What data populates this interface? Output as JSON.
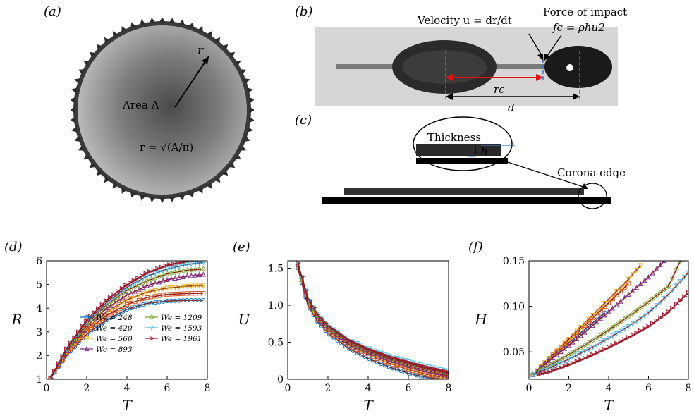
{
  "panels": {
    "a": {
      "label": "(a)",
      "r_label": "r",
      "area_label": "Area A",
      "formula": "r = √(A/π)"
    },
    "b": {
      "label": "(b)",
      "velocity_label": "Velocity u = dr/dt",
      "force_label": "Force of impact",
      "force_formula": "fc = ρhu2",
      "rc_label": "rc",
      "d_label": "d"
    },
    "c": {
      "label": "(c)",
      "thickness_label": "Thickness",
      "h_label": "h",
      "corona_label": "Corona edge"
    },
    "d": {
      "label": "(d)"
    },
    "e": {
      "label": "(e)"
    },
    "f": {
      "label": "(f)"
    }
  },
  "colors": {
    "We248": "#0072bd",
    "We420": "#d95319",
    "We560": "#edb120",
    "We893": "#7e2f8e",
    "We1209": "#77ac30",
    "We1593": "#4dbeee",
    "We1961": "#a2142f",
    "fit_line": "#8b1a1a",
    "arrow_red": "#e5140f",
    "dash_blue": "#3a78c9"
  },
  "chart_data": [
    {
      "type": "line",
      "panel": "d",
      "xlabel": "T",
      "ylabel": "R",
      "xlim": [
        0,
        8
      ],
      "ylim": [
        1,
        6
      ],
      "xticks": [
        "0",
        "2",
        "4",
        "6",
        "8"
      ],
      "yticks": [
        "1",
        "2",
        "3",
        "4",
        "5",
        "6"
      ],
      "legend_placement": "bottom-right",
      "series": [
        {
          "name": "We = 248",
          "marker": "circle",
          "x": [
            0.2,
            1,
            2,
            3,
            4,
            5,
            6,
            7,
            7.8
          ],
          "values": [
            1.05,
            2.0,
            2.9,
            3.5,
            3.95,
            4.2,
            4.3,
            4.33,
            4.33
          ]
        },
        {
          "name": "We = 420",
          "marker": "square",
          "x": [
            0.2,
            1,
            2,
            3,
            4,
            5,
            6,
            7,
            7.8
          ],
          "values": [
            1.05,
            2.1,
            3.05,
            3.7,
            4.15,
            4.45,
            4.58,
            4.62,
            4.63
          ]
        },
        {
          "name": "We = 560",
          "marker": "triangle-down",
          "x": [
            0.2,
            1,
            2,
            3,
            4,
            5,
            6,
            7,
            7.8
          ],
          "values": [
            1.05,
            2.15,
            3.15,
            3.85,
            4.35,
            4.68,
            4.85,
            4.93,
            4.95
          ]
        },
        {
          "name": "We = 893",
          "marker": "triangle-up",
          "x": [
            0.2,
            1,
            2,
            3,
            4,
            5,
            6,
            7,
            7.8
          ],
          "values": [
            1.05,
            2.2,
            3.25,
            4.0,
            4.55,
            4.95,
            5.2,
            5.35,
            5.42
          ]
        },
        {
          "name": "We = 1209",
          "marker": "diamond",
          "x": [
            0.2,
            1,
            2,
            3,
            4,
            5,
            6,
            7,
            7.8
          ],
          "values": [
            1.05,
            2.25,
            3.35,
            4.15,
            4.75,
            5.15,
            5.45,
            5.6,
            5.65
          ]
        },
        {
          "name": "We = 1593",
          "marker": "triangle-down",
          "x": [
            0.2,
            1,
            2,
            3,
            4,
            5,
            6,
            7,
            7.8
          ],
          "values": [
            1.05,
            2.28,
            3.42,
            4.25,
            4.88,
            5.35,
            5.65,
            5.85,
            5.93
          ]
        },
        {
          "name": "We = 1961",
          "marker": "triangle-right",
          "x": [
            0.2,
            1,
            2,
            3,
            4,
            5,
            6,
            7,
            7.5
          ],
          "values": [
            1.05,
            2.3,
            3.5,
            4.35,
            5.0,
            5.5,
            5.82,
            6.0,
            6.05
          ]
        }
      ]
    },
    {
      "type": "line",
      "panel": "e",
      "xlabel": "T",
      "ylabel": "U",
      "xlim": [
        0,
        8
      ],
      "ylim": [
        0,
        1.6
      ],
      "xticks": [
        "0",
        "2",
        "4",
        "6",
        "8"
      ],
      "yticks": [
        "0",
        "0.5",
        "1.0",
        "1.5"
      ],
      "series": [
        {
          "name": "We = 248",
          "x": [
            0.5,
            1,
            1.5,
            2,
            3,
            4,
            5,
            6,
            7,
            8
          ],
          "values": [
            1.5,
            1.0,
            0.77,
            0.62,
            0.42,
            0.28,
            0.17,
            0.08,
            0.02,
            0.0
          ]
        },
        {
          "name": "We = 420",
          "x": [
            0.5,
            1,
            1.5,
            2,
            3,
            4,
            5,
            6,
            7,
            8
          ],
          "values": [
            1.52,
            1.03,
            0.8,
            0.65,
            0.46,
            0.33,
            0.22,
            0.13,
            0.06,
            0.02
          ]
        },
        {
          "name": "We = 560",
          "x": [
            0.5,
            1,
            1.5,
            2,
            3,
            4,
            5,
            6,
            7,
            8
          ],
          "values": [
            1.53,
            1.05,
            0.82,
            0.67,
            0.48,
            0.35,
            0.25,
            0.16,
            0.09,
            0.04
          ]
        },
        {
          "name": "We = 893",
          "x": [
            0.5,
            1,
            1.5,
            2,
            3,
            4,
            5,
            6,
            7,
            8
          ],
          "values": [
            1.54,
            1.07,
            0.84,
            0.69,
            0.5,
            0.37,
            0.27,
            0.18,
            0.11,
            0.05
          ]
        },
        {
          "name": "We = 1209",
          "x": [
            0.5,
            1,
            1.5,
            2,
            3,
            4,
            5,
            6,
            7,
            8
          ],
          "values": [
            1.55,
            1.08,
            0.85,
            0.7,
            0.52,
            0.39,
            0.29,
            0.21,
            0.14,
            0.08
          ]
        },
        {
          "name": "We = 1593",
          "x": [
            0.5,
            1,
            1.5,
            2,
            3,
            4,
            5,
            6,
            7,
            8
          ],
          "values": [
            1.56,
            1.1,
            0.87,
            0.72,
            0.54,
            0.42,
            0.32,
            0.24,
            0.17,
            0.11
          ]
        },
        {
          "name": "We = 1961",
          "x": [
            0.5,
            1,
            1.5,
            2,
            3,
            4,
            5,
            6,
            7,
            8
          ],
          "values": [
            1.57,
            1.1,
            0.87,
            0.72,
            0.53,
            0.4,
            0.3,
            0.22,
            0.15,
            0.09
          ]
        }
      ]
    },
    {
      "type": "line",
      "panel": "f",
      "xlabel": "T",
      "ylabel": "H",
      "xlim": [
        0,
        8
      ],
      "ylim": [
        0.02,
        0.15
      ],
      "xticks": [
        "0",
        "2",
        "4",
        "6",
        "8"
      ],
      "yticks": [
        "0.05",
        "0.10",
        "0.15"
      ],
      "series": [
        {
          "name": "We = 248",
          "x": [
            0.2,
            1,
            2,
            3,
            3.8
          ],
          "values": [
            0.025,
            0.042,
            0.06,
            0.078,
            0.093
          ]
        },
        {
          "name": "We = 420",
          "x": [
            0.2,
            1,
            2,
            3,
            4,
            5
          ],
          "values": [
            0.025,
            0.043,
            0.063,
            0.083,
            0.104,
            0.125
          ]
        },
        {
          "name": "We = 560",
          "x": [
            0.2,
            1,
            2,
            3,
            4,
            5,
            5.6
          ],
          "values": [
            0.025,
            0.043,
            0.064,
            0.086,
            0.108,
            0.13,
            0.145
          ]
        },
        {
          "name": "We = 893",
          "x": [
            0.2,
            1,
            2,
            3,
            4,
            5,
            6,
            6.8
          ],
          "values": [
            0.025,
            0.04,
            0.057,
            0.075,
            0.094,
            0.113,
            0.132,
            0.15
          ]
        },
        {
          "name": "We = 1209",
          "x": [
            0.2,
            1,
            2,
            3,
            4,
            5,
            6,
            7,
            7.6
          ],
          "values": [
            0.025,
            0.035,
            0.047,
            0.06,
            0.074,
            0.089,
            0.105,
            0.122,
            0.15
          ]
        },
        {
          "name": "We = 1593",
          "x": [
            0.2,
            1,
            2,
            3,
            4,
            5,
            6,
            7,
            8
          ],
          "values": [
            0.025,
            0.032,
            0.042,
            0.053,
            0.065,
            0.078,
            0.093,
            0.113,
            0.137
          ]
        },
        {
          "name": "We = 1961",
          "x": [
            0.4,
            1,
            2,
            3,
            4,
            5,
            6,
            7,
            8
          ],
          "values": [
            0.025,
            0.028,
            0.036,
            0.045,
            0.055,
            0.066,
            0.078,
            0.094,
            0.115
          ]
        }
      ]
    }
  ]
}
